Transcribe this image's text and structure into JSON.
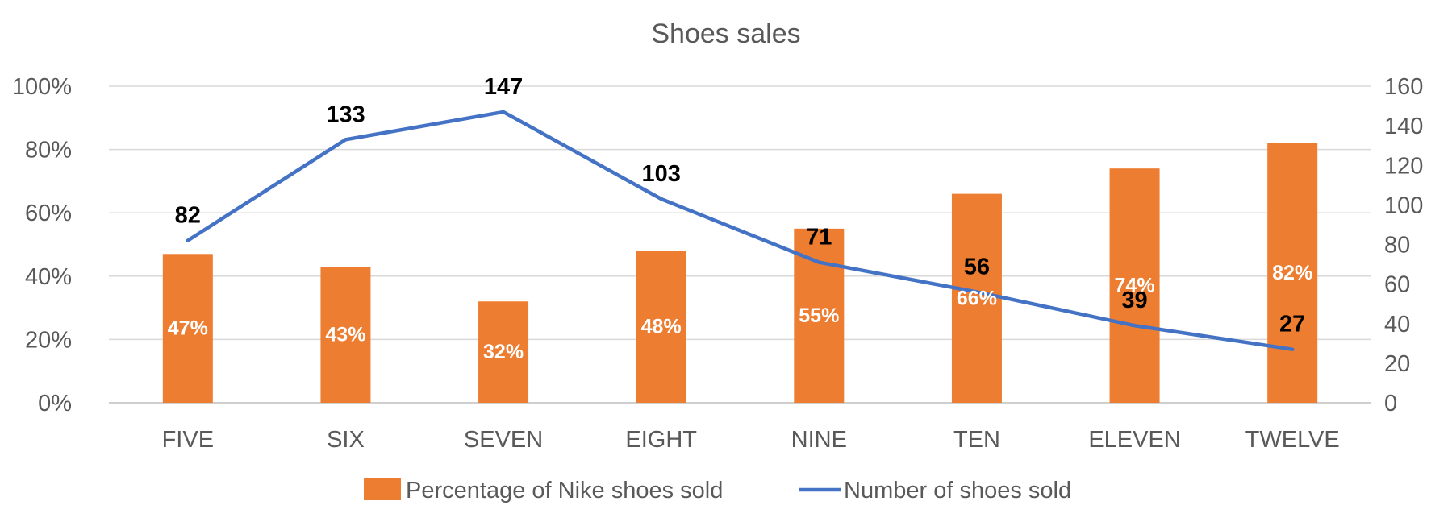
{
  "chart_data": {
    "type": "bar",
    "title": "Shoes sales",
    "categories": [
      "FIVE",
      "SIX",
      "SEVEN",
      "EIGHT",
      "NINE",
      "TEN",
      "ELEVEN",
      "TWELVE"
    ],
    "series": [
      {
        "name": "Percentage of Nike shoes sold",
        "type": "bar",
        "axis": "left",
        "values": [
          47,
          43,
          32,
          48,
          55,
          66,
          74,
          82
        ],
        "labels": [
          "47%",
          "43%",
          "32%",
          "48%",
          "55%",
          "66%",
          "74%",
          "82%"
        ],
        "color": "#ED7D31"
      },
      {
        "name": "Number of shoes sold",
        "type": "line",
        "axis": "right",
        "values": [
          82,
          133,
          147,
          103,
          71,
          56,
          39,
          27
        ],
        "labels": [
          "82",
          "133",
          "147",
          "103",
          "71",
          "56",
          "39",
          "27"
        ],
        "color": "#4472C4"
      }
    ],
    "y_left": {
      "range": [
        0,
        100
      ],
      "ticks": [
        "0%",
        "20%",
        "40%",
        "60%",
        "80%",
        "100%"
      ]
    },
    "y_right": {
      "range": [
        0,
        160
      ],
      "ticks": [
        "0",
        "20",
        "40",
        "60",
        "80",
        "100",
        "120",
        "140",
        "160"
      ]
    },
    "grid": true,
    "legend_position": "bottom"
  }
}
